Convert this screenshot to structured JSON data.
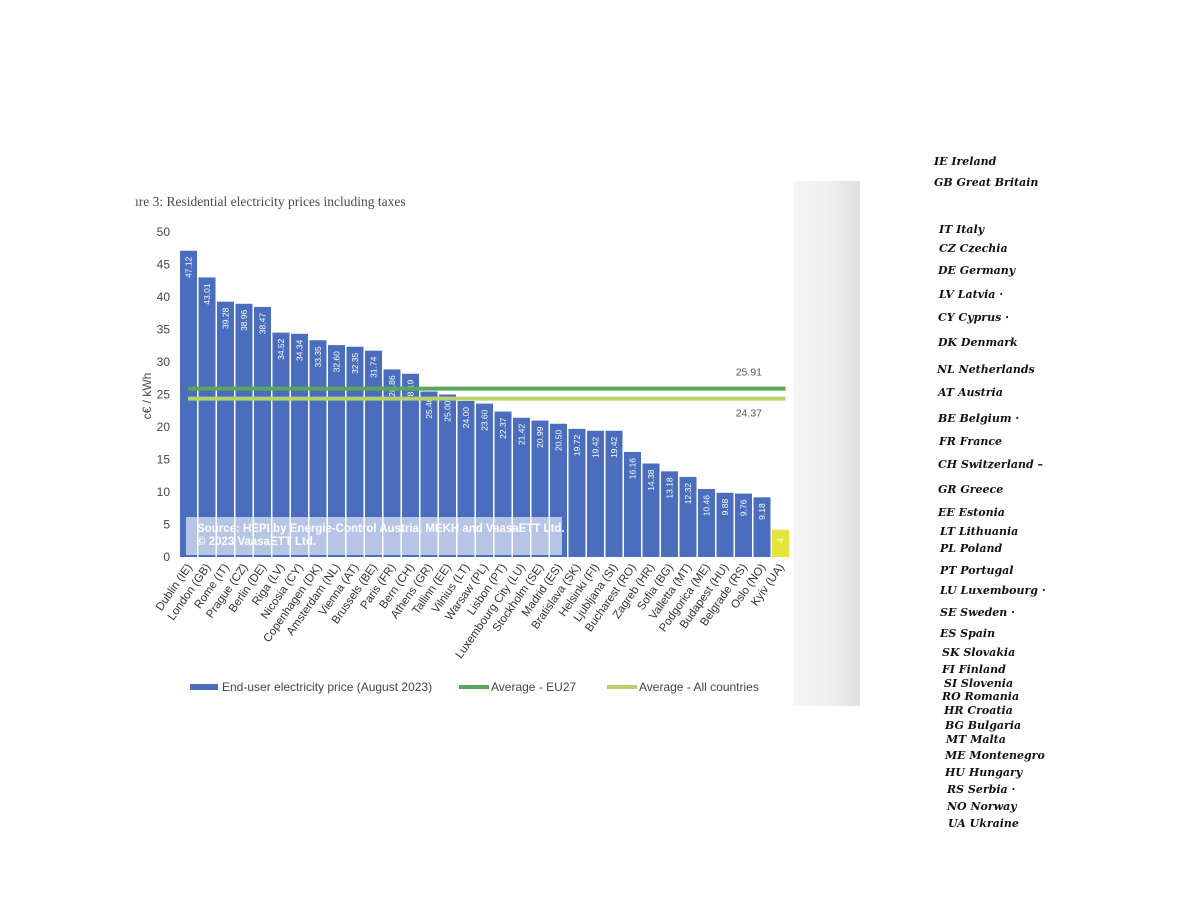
{
  "chart_data": {
    "type": "bar",
    "title": "ıre 3: Residential electricity prices including taxes",
    "ylabel": "c€ / kWh",
    "xlabel": "",
    "ylim": [
      0,
      50
    ],
    "yticks": [
      0,
      5,
      10,
      15,
      20,
      25,
      30,
      35,
      40,
      45,
      50
    ],
    "grid": false,
    "legend_position": "bottom",
    "categories": [
      "Dublin (IE)",
      "London (GB)",
      "Rome (IT)",
      "Prague (CZ)",
      "Berlin (DE)",
      "Riga (LV)",
      "Nicosia (CY)",
      "Copenhagen (DK)",
      "Amsterdam (NL)",
      "Vienna (AT)",
      "Brussels (BE)",
      "Paris (FR)",
      "Bern (CH)",
      "Athens (GR)",
      "Tallinn (EE)",
      "Vilnius (LT)",
      "Warsaw (PL)",
      "Lisbon (PT)",
      "Luxembourg City (LU)",
      "Stockholm (SE)",
      "Madrid (ES)",
      "Bratislava (SK)",
      "Helsinki (FI)",
      "Ljubljana (SI)",
      "Bucharest (RO)",
      "Zagreb (HR)",
      "Sofia (BG)",
      "Valletta (MT)",
      "Podgorica (ME)",
      "Budapest (HU)",
      "Belgrade (RS)",
      "Oslo (NO)",
      "Kyiv (UA)"
    ],
    "value_labels": [
      "47.12",
      "43.01",
      "39.28",
      "38.96",
      "38.47",
      "34.52",
      "34.34",
      "33.35",
      "32.60",
      "32.35",
      "31.74",
      "28.86",
      "28.19",
      "25.46",
      "25.00",
      "24.00",
      "23.60",
      "22.37",
      "21.42",
      "20.99",
      "20.50",
      "19.72",
      "19.42",
      "19.42",
      "16.16",
      "14.38",
      "13.18",
      "12.32",
      "10.46",
      "9.88",
      "9.76",
      "9.18",
      "4."
    ],
    "series": [
      {
        "name": "End-user electricity price (August 2023)",
        "color": "#4a6dbe",
        "values": [
          47.12,
          43.01,
          39.28,
          38.96,
          38.47,
          34.52,
          34.34,
          33.35,
          32.6,
          32.35,
          31.74,
          28.86,
          28.19,
          25.46,
          25.0,
          24.0,
          23.6,
          22.37,
          21.42,
          20.99,
          20.5,
          19.72,
          19.42,
          19.42,
          16.16,
          14.38,
          13.18,
          12.32,
          10.46,
          9.88,
          9.76,
          9.18,
          4.2
        ]
      }
    ],
    "highlight_last_bar_color": "#e6e33a",
    "reference_lines": [
      {
        "name": "Average - EU27",
        "value": 25.91,
        "label": "25.91",
        "color": "#5aa65a"
      },
      {
        "name": "Average - All countries",
        "value": 24.37,
        "label": "24.37",
        "color": "#b5d36a"
      }
    ],
    "annotation": {
      "line1": "Source: HEPI by Energie-Control Austria, MEKH and VaasaETT Ltd.",
      "line2": "© 2023 VaasaETT Ltd."
    }
  },
  "handwritten_list": [
    "IE Ireland",
    "GB Great Britain",
    "IT Italy",
    "CZ Czechia",
    "DE Germany",
    "LV Latvia ·",
    "CY Cyprus ·",
    "DK Denmark",
    "NL Netherlands",
    "AT Austria",
    "BE Belgium ·",
    "FR France",
    "CH Switzerland –",
    "GR Greece",
    "EE Estonia",
    "LT Lithuania",
    "PL Poland",
    "PT Portugal",
    "LU Luxembourg ·",
    "SE Sweden ·",
    "ES Spain",
    "SK Slovakia",
    "FI Finland",
    "SI Slovenia",
    "RO Romania",
    "HR Croatia",
    "BG Bulgaria",
    "MT Malta",
    "ME Montenegro",
    "HU Hungary",
    "RS Serbia ·",
    "NO Norway",
    "UA Ukraine"
  ]
}
